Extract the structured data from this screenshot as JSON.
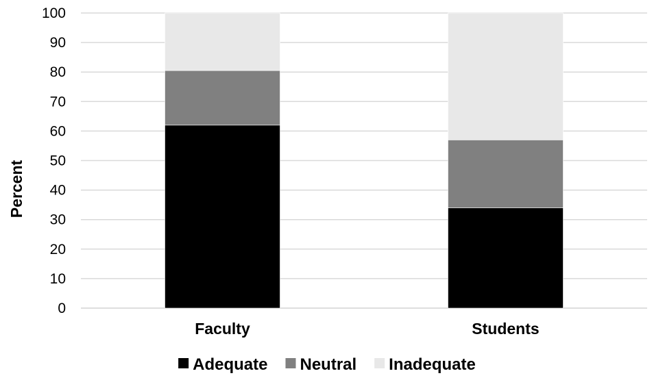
{
  "chart_data": {
    "type": "bar",
    "stacked": true,
    "categories": [
      "Faculty",
      "Students"
    ],
    "series": [
      {
        "name": "Adequate",
        "values": [
          62,
          34
        ],
        "color": "#000000"
      },
      {
        "name": "Neutral",
        "values": [
          18.5,
          23
        ],
        "color": "#808080"
      },
      {
        "name": "Inadequate",
        "values": [
          19.5,
          43
        ],
        "color": "#e8e8e8"
      }
    ],
    "title": "",
    "xlabel": "",
    "ylabel": "Percent",
    "ylim": [
      0,
      100
    ],
    "yticks": [
      0,
      10,
      20,
      30,
      40,
      50,
      60,
      70,
      80,
      90,
      100
    ],
    "grid": true,
    "legend_position": "bottom"
  }
}
